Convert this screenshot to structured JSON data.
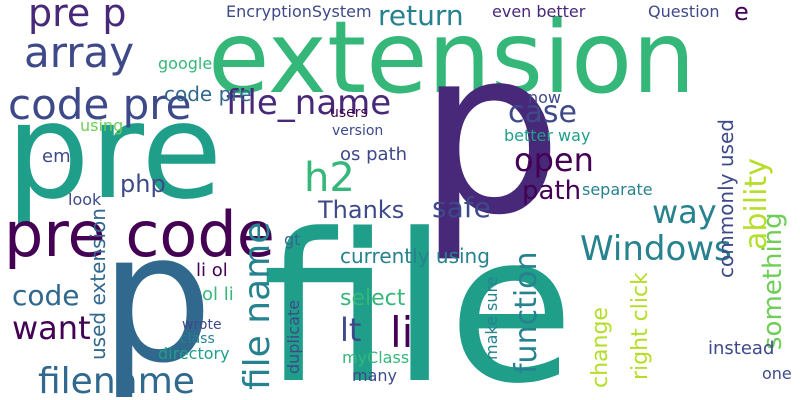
{
  "words": [
    {
      "text": "extension",
      "color": "#35b779"
    },
    {
      "text": "file",
      "color": "#1f9e89"
    },
    {
      "text": "p",
      "color": "#482878"
    },
    {
      "text": "pre",
      "color": "#1f9e89"
    },
    {
      "text": "p",
      "color": "#31688e"
    },
    {
      "text": "pre code",
      "color": "#440154"
    },
    {
      "text": "code pre",
      "color": "#3e4989"
    },
    {
      "text": "array",
      "color": "#3e4989"
    },
    {
      "text": "pre p",
      "color": "#482878"
    },
    {
      "text": "return",
      "color": "#26828e"
    },
    {
      "text": "file_name",
      "color": "#482878"
    },
    {
      "text": "filename",
      "color": "#31688e"
    },
    {
      "text": "file name",
      "color": "#26828e"
    },
    {
      "text": "Windows",
      "color": "#26828e"
    },
    {
      "text": "open",
      "color": "#440154"
    },
    {
      "text": "h2",
      "color": "#35b779"
    },
    {
      "text": "li",
      "color": "#440154"
    },
    {
      "text": "lt",
      "color": "#3e4989"
    },
    {
      "text": "code",
      "color": "#31688e"
    },
    {
      "text": "want",
      "color": "#440154"
    },
    {
      "text": "path",
      "color": "#440154"
    },
    {
      "text": "way",
      "color": "#26828e"
    },
    {
      "text": "safe",
      "color": "#3e4989"
    },
    {
      "text": "Thanks",
      "color": "#3e4989"
    },
    {
      "text": "case",
      "color": "#3e4989"
    },
    {
      "text": "ability",
      "color": "#b5de2b"
    },
    {
      "text": "function",
      "color": "#26828e"
    },
    {
      "text": "something",
      "color": "#6ece58"
    },
    {
      "text": "select",
      "color": "#35b779"
    },
    {
      "text": "currently using",
      "color": "#26828e"
    },
    {
      "text": "EncryptionSystem",
      "color": "#3e4989"
    },
    {
      "text": "even better",
      "color": "#482878"
    },
    {
      "text": "Question",
      "color": "#3e4989"
    },
    {
      "text": "e",
      "color": "#440154"
    },
    {
      "text": "php",
      "color": "#3e4989"
    },
    {
      "text": "em",
      "color": "#3e4989"
    },
    {
      "text": "now",
      "color": "#3e4989"
    },
    {
      "text": "better way",
      "color": "#1f9e89"
    },
    {
      "text": "os path",
      "color": "#3e4989"
    },
    {
      "text": "version",
      "color": "#3e4989"
    },
    {
      "text": "using",
      "color": "#6ece58"
    },
    {
      "text": "look",
      "color": "#3e4989"
    },
    {
      "text": "google",
      "color": "#35b779"
    },
    {
      "text": "ol li",
      "color": "#35b779"
    },
    {
      "text": "li ol",
      "color": "#440154"
    },
    {
      "text": "used extension",
      "color": "#31688e"
    },
    {
      "text": "commonly used",
      "color": "#3e4989"
    },
    {
      "text": "separate",
      "color": "#26828e"
    },
    {
      "text": "instead",
      "color": "#3e4989"
    },
    {
      "text": "right click",
      "color": "#b5de2b"
    },
    {
      "text": "make sure",
      "color": "#26828e"
    },
    {
      "text": "change",
      "color": "#b5de2b"
    },
    {
      "text": "directory",
      "color": "#1f9e89"
    },
    {
      "text": "class",
      "color": "#26828e"
    },
    {
      "text": "wrote",
      "color": "#3e4989"
    },
    {
      "text": "myClass",
      "color": "#35b779"
    },
    {
      "text": "many",
      "color": "#3e4989"
    },
    {
      "text": "duplicate",
      "color": "#3e4989"
    },
    {
      "text": "gt",
      "color": "#31688e"
    },
    {
      "text": "users",
      "color": "#440154"
    },
    {
      "text": "one",
      "color": "#3e4989"
    },
    {
      "text": "code pre",
      "color": "#31688e"
    }
  ]
}
